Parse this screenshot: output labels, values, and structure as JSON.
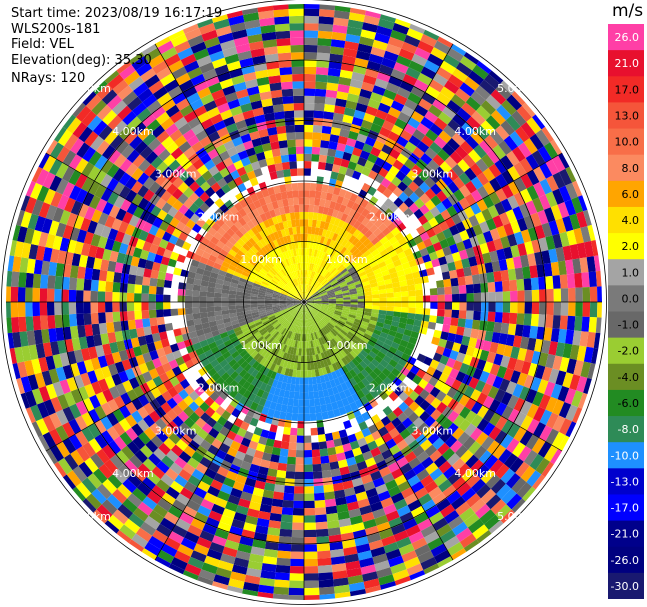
{
  "header": {
    "start_time": "Start time: 2023/08/19 16:17:19",
    "instrument": "WLS200s-181",
    "field": "Field: VEL",
    "elevation": "Elevation(deg): 35.30",
    "nrays": "NRays: 120"
  },
  "chart_data": {
    "type": "heatmap",
    "projection": "polar PPI",
    "field": "VEL",
    "units": "m/s",
    "n_rays": 120,
    "elevation_deg": 35.3,
    "range_rings_km": [
      1.0,
      2.0,
      3.0,
      4.0,
      5.0
    ],
    "ring_labels": [
      "1.00km",
      "2.00km",
      "3.00km",
      "4.00km",
      "5.00km"
    ],
    "colorbar": {
      "title": "m/s",
      "bins": [
        {
          "label": "26.0",
          "color": "#ff3fa6"
        },
        {
          "label": "21.0",
          "color": "#e8102e"
        },
        {
          "label": "17.0",
          "color": "#f22a26"
        },
        {
          "label": "13.0",
          "color": "#f5553a"
        },
        {
          "label": "10.0",
          "color": "#f86e48"
        },
        {
          "label": "8.0",
          "color": "#fb8a60"
        },
        {
          "label": "6.0",
          "color": "#ffa500"
        },
        {
          "label": "4.0",
          "color": "#ffe000"
        },
        {
          "label": "2.0",
          "color": "#ffff00"
        },
        {
          "label": "1.0",
          "color": "#a4a4a4"
        },
        {
          "label": "0.0",
          "color": "#7a7a7a"
        },
        {
          "label": "-1.0",
          "color": "#686868"
        },
        {
          "label": "-2.0",
          "color": "#9acd32"
        },
        {
          "label": "-4.0",
          "color": "#6b8e23"
        },
        {
          "label": "-6.0",
          "color": "#228b22"
        },
        {
          "label": "-8.0",
          "color": "#2e8b57"
        },
        {
          "label": "-10.0",
          "color": "#1e90ff"
        },
        {
          "label": "-13.0",
          "color": "#0000cd"
        },
        {
          "label": "-17.0",
          "color": "#0000ff"
        },
        {
          "label": "-21.0",
          "color": "#00008b"
        },
        {
          "label": "-26.0",
          "color": "#000080"
        },
        {
          "label": "-30.0",
          "color": "#191970"
        }
      ]
    },
    "velocity_regions_note": "Inner disc (<~2km): positive 6-10 m/s to the north, 2-4 m/s ring, near-zero grey west/north-east, -2 to -6 m/s south-east, -10 m/s patch south; outer region (>2km) noise across full colour scale"
  }
}
